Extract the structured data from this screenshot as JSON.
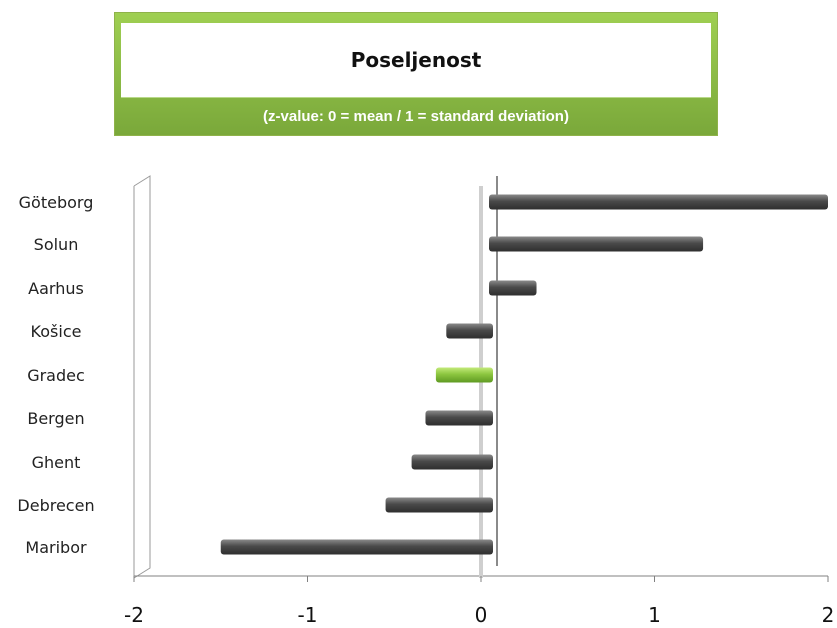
{
  "header": {
    "title": "Poseljenost",
    "subtitle": "(z-value: 0 = mean / 1 = standard deviation)"
  },
  "colors": {
    "bar": "#555555",
    "highlight": "#8cc63f",
    "title_band": "#7fae3e"
  },
  "chart_data": {
    "type": "bar",
    "orientation": "horizontal",
    "title": "Poseljenost",
    "subtitle": "(z-value: 0 = mean / 1 = standard deviation)",
    "categories": [
      "Göteborg",
      "Solun",
      "Aarhus",
      "Košice",
      "Gradec",
      "Bergen",
      "Ghent",
      "Debrecen",
      "Maribor"
    ],
    "values": [
      2.0,
      1.28,
      0.32,
      -0.2,
      -0.26,
      -0.32,
      -0.4,
      -0.55,
      -1.5
    ],
    "highlight_category": "Gradec",
    "xlim": [
      -2,
      2
    ],
    "xticks": [
      "-2",
      "-1",
      "0",
      "1",
      "2"
    ],
    "grid": false,
    "legend": "none"
  }
}
